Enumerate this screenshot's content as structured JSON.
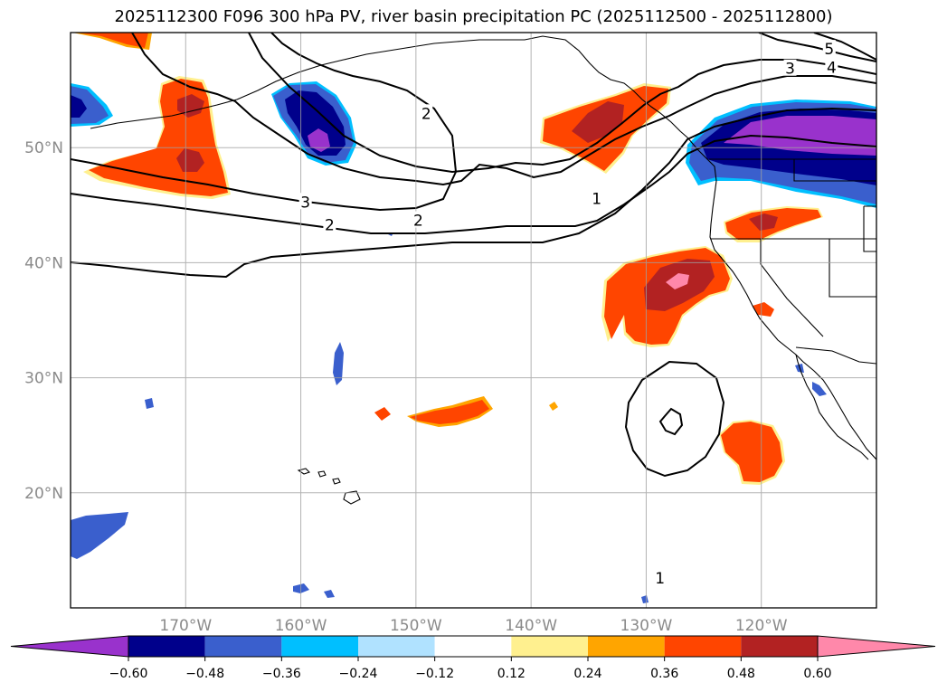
{
  "title": "2025112300 F096 300 hPa PV, river basin precipitation PC (2025112500 - 2025112800)",
  "map": {
    "lon_range": [
      -180,
      -110
    ],
    "lat_range": [
      10,
      60
    ],
    "lon_ticks": [
      {
        "value": -170,
        "label": "170°W"
      },
      {
        "value": -160,
        "label": "160°W"
      },
      {
        "value": -150,
        "label": "150°W"
      },
      {
        "value": -140,
        "label": "140°W"
      },
      {
        "value": -130,
        "label": "130°W"
      },
      {
        "value": -120,
        "label": "120°W"
      }
    ],
    "lat_ticks": [
      {
        "value": 20,
        "label": "20°N"
      },
      {
        "value": 30,
        "label": "30°N"
      },
      {
        "value": 40,
        "label": "40°N"
      },
      {
        "value": 50,
        "label": "50°N"
      }
    ],
    "grid": true,
    "contour_labels": [
      {
        "text": "1",
        "lon": -128.8,
        "lat": 12.5
      },
      {
        "text": "1",
        "lon": -134.3,
        "lat": 45.5
      },
      {
        "text": "2",
        "lon": -149.1,
        "lat": 52.9
      },
      {
        "text": "2",
        "lon": -149.8,
        "lat": 43.6
      },
      {
        "text": "3",
        "lon": -159.6,
        "lat": 45.2
      },
      {
        "text": "3",
        "lon": -117.5,
        "lat": 56.8
      },
      {
        "text": "4",
        "lon": -113.9,
        "lat": 56.9
      },
      {
        "text": "5",
        "lon": -114.1,
        "lat": 58.5
      },
      {
        "text": "2",
        "lon": -157.5,
        "lat": 43.2
      }
    ]
  },
  "colorbar": {
    "levels": [
      "−0.60",
      "−0.48",
      "−0.36",
      "−0.24",
      "−0.12",
      "0.12",
      "0.24",
      "0.36",
      "0.48",
      "0.60"
    ],
    "colors": [
      "#9932cc",
      "#00008b",
      "#3a5fcd",
      "#00bfff",
      "#b0e2ff",
      "#ffffff",
      "#fff08f",
      "#ffa500",
      "#ff4500",
      "#b22222",
      "#ff88aa"
    ],
    "extend": "both"
  }
}
